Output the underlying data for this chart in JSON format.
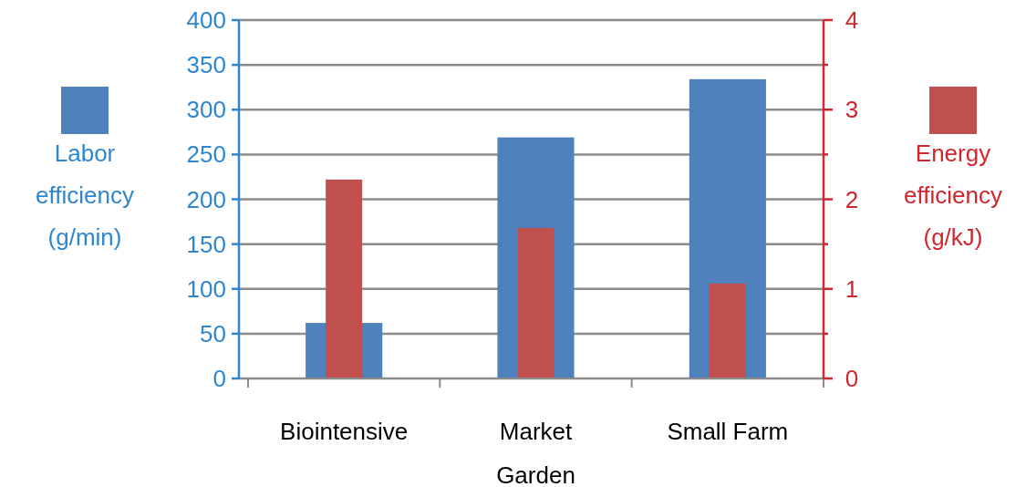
{
  "chart_data": {
    "type": "bar",
    "categories": [
      "Biointensive",
      "Market Garden",
      "Small Farm"
    ],
    "series": [
      {
        "color": "#4f81bd",
        "values": [
          62,
          269,
          334
        ]
      },
      {
        "color": "#c0504d",
        "values": [
          2.22,
          1.68,
          1.06
        ],
        "axis": "y2"
      }
    ],
    "ylabel": "Labor efficiency (g/min)",
    "y2label": "Energy efficiency (g/kJ)",
    "ylim": [
      0,
      400
    ],
    "yticks": [
      0,
      50,
      100,
      150,
      200,
      250,
      300,
      350,
      400
    ],
    "y2lim": [
      0,
      4
    ],
    "y2ticks": [
      0,
      {
        "value": 0.5,
        "label": null
      },
      1,
      {
        "value": 1.5,
        "label": null
      },
      2,
      {
        "value": 2.5,
        "label": null
      },
      3,
      {
        "value": 3.5,
        "label": null
      },
      4
    ],
    "grid": "y"
  }
}
